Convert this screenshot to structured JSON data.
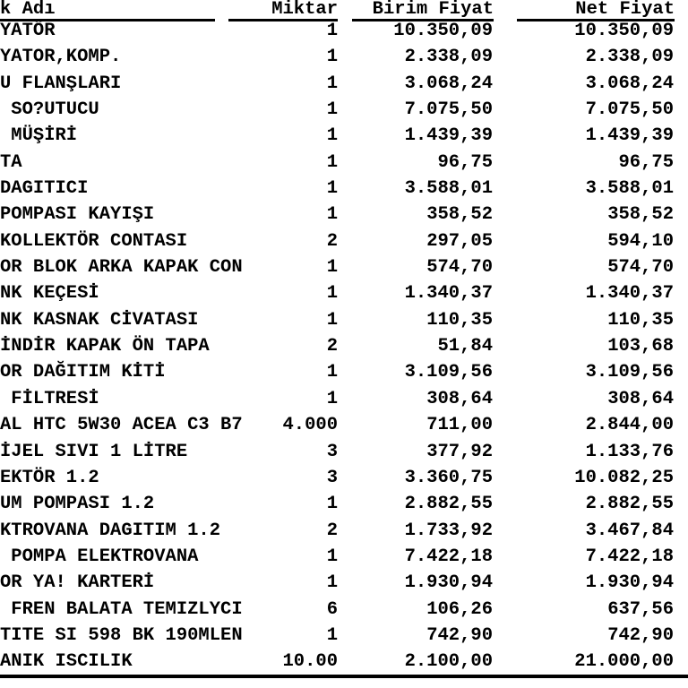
{
  "colors": {
    "background": "#ffffff",
    "text": "#000000",
    "rule": "#000000"
  },
  "header": {
    "name_label": "k Adı",
    "qty_label": "Miktar",
    "unit_price_label": "Birim Fiyat",
    "net_price_label": "Net Fiyat"
  },
  "table": {
    "rows": [
      {
        "name": "YATÖR",
        "qty": "1",
        "unit_price": "10.350,09",
        "net_price": "10.350,09"
      },
      {
        "name": "YATOR,KOMP.",
        "qty": "1",
        "unit_price": "2.338,09",
        "net_price": "2.338,09"
      },
      {
        "name": "U FLANŞLARI",
        "qty": "1",
        "unit_price": "3.068,24",
        "net_price": "3.068,24"
      },
      {
        "name": " SO?UTUCU",
        "qty": "1",
        "unit_price": "7.075,50",
        "net_price": "7.075,50"
      },
      {
        "name": " MÜŞİRİ",
        "qty": "1",
        "unit_price": "1.439,39",
        "net_price": "1.439,39"
      },
      {
        "name": "TA",
        "qty": "1",
        "unit_price": "96,75",
        "net_price": "96,75"
      },
      {
        "name": "DAGITICI",
        "qty": "1",
        "unit_price": "3.588,01",
        "net_price": "3.588,01"
      },
      {
        "name": "POMPASI KAYIŞI",
        "qty": "1",
        "unit_price": "358,52",
        "net_price": "358,52"
      },
      {
        "name": "KOLLEKTÖR CONTASI",
        "qty": "2",
        "unit_price": "297,05",
        "net_price": "594,10"
      },
      {
        "name": "OR BLOK ARKA KAPAK CON",
        "qty": "1",
        "unit_price": "574,70",
        "net_price": "574,70"
      },
      {
        "name": "NK KEÇESİ",
        "qty": "1",
        "unit_price": "1.340,37",
        "net_price": "1.340,37"
      },
      {
        "name": "NK KASNAK CİVATASI",
        "qty": "1",
        "unit_price": "110,35",
        "net_price": "110,35"
      },
      {
        "name": "İNDİR KAPAK ÖN TAPA",
        "qty": "2",
        "unit_price": "51,84",
        "net_price": "103,68"
      },
      {
        "name": "OR DAĞITIM KİTİ",
        "qty": "1",
        "unit_price": "3.109,56",
        "net_price": "3.109,56"
      },
      {
        "name": " FİLTRESİ",
        "qty": "1",
        "unit_price": "308,64",
        "net_price": "308,64"
      },
      {
        "name": "AL HTC 5W30 ACEA C3 B7",
        "qty": "4.000",
        "unit_price": "711,00",
        "net_price": "2.844,00"
      },
      {
        "name": "İJEL SIVI 1 LİTRE",
        "qty": "3",
        "unit_price": "377,92",
        "net_price": "1.133,76"
      },
      {
        "name": "EKTÖR 1.2",
        "qty": "3",
        "unit_price": "3.360,75",
        "net_price": "10.082,25"
      },
      {
        "name": "UM POMPASI 1.2",
        "qty": "1",
        "unit_price": "2.882,55",
        "net_price": "2.882,55"
      },
      {
        "name": "KTROVANA DAGITIM 1.2",
        "qty": "2",
        "unit_price": "1.733,92",
        "net_price": "3.467,84"
      },
      {
        "name": " POMPA ELEKTROVANA",
        "qty": "1",
        "unit_price": "7.422,18",
        "net_price": "7.422,18"
      },
      {
        "name": "OR YA! KARTERİ",
        "qty": "1",
        "unit_price": "1.930,94",
        "net_price": "1.930,94"
      },
      {
        "name": " FREN BALATA TEMIZLYCI",
        "qty": "6",
        "unit_price": "106,26",
        "net_price": "637,56"
      },
      {
        "name": "TITE SI 598 BK 190MLEN",
        "qty": "1",
        "unit_price": "742,90",
        "net_price": "742,90"
      },
      {
        "name": "ANIK ISCILIK",
        "qty": "10.00",
        "unit_price": "2.100,00",
        "net_price": "21.000,00"
      }
    ]
  }
}
